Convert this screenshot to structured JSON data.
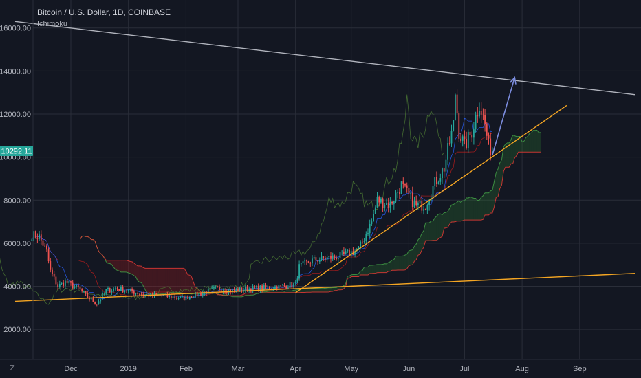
{
  "header": {
    "title": "Bitcoin / U.S. Dollar, 1D, COINBASE",
    "indicator": "Ichimoku"
  },
  "toolbar": {
    "zoom_icon": "Z"
  },
  "colors": {
    "background": "#131722",
    "grid": "#2a2e39",
    "up": "#26a69a",
    "down": "#ef5350",
    "price_line": "#26a69a",
    "trendline_orange": "#f5a623",
    "trendline_grey": "#b2b5be",
    "arrow": "#7b8cde",
    "cloud_bull": "#2e7d32",
    "cloud_bear": "#b71c1c"
  },
  "chart_data": {
    "type": "candlestick",
    "title": "Bitcoin / U.S. Dollar, 1D, COINBASE",
    "indicator": "Ichimoku",
    "x_ticks": [
      "Dec",
      "2019",
      "Feb",
      "Mar",
      "Apr",
      "May",
      "Jun",
      "Jul",
      "Aug",
      "Sep"
    ],
    "y_ticks": [
      "2000.00",
      "4000.00",
      "6000.00",
      "8000.00",
      "10000.00",
      "12000.00",
      "14000.00",
      "16000.00"
    ],
    "ylim": [
      600,
      17300
    ],
    "last_price": "10292.11",
    "close_path": [
      [
        "2018-11-10",
        6400
      ],
      [
        "2018-11-14",
        6300
      ],
      [
        "2018-11-18",
        5600
      ],
      [
        "2018-11-20",
        4700
      ],
      [
        "2018-11-24",
        4000
      ],
      [
        "2018-11-28",
        4200
      ],
      [
        "2018-12-05",
        3900
      ],
      [
        "2018-12-10",
        3500
      ],
      [
        "2018-12-15",
        3200
      ],
      [
        "2018-12-20",
        3800
      ],
      [
        "2018-12-25",
        3900
      ],
      [
        "2019-01-01",
        3800
      ],
      [
        "2019-01-10",
        3600
      ],
      [
        "2019-01-20",
        3550
      ],
      [
        "2019-01-30",
        3450
      ],
      [
        "2019-02-08",
        3650
      ],
      [
        "2019-02-18",
        3900
      ],
      [
        "2019-02-25",
        3800
      ],
      [
        "2019-03-10",
        3900
      ],
      [
        "2019-03-25",
        4000
      ],
      [
        "2019-04-01",
        4100
      ],
      [
        "2019-04-03",
        4900
      ],
      [
        "2019-04-10",
        5200
      ],
      [
        "2019-04-25",
        5400
      ],
      [
        "2019-05-05",
        5700
      ],
      [
        "2019-05-12",
        7000
      ],
      [
        "2019-05-15",
        8000
      ],
      [
        "2019-05-22",
        7800
      ],
      [
        "2019-05-28",
        8700
      ],
      [
        "2019-06-05",
        7700
      ],
      [
        "2019-06-10",
        7800
      ],
      [
        "2019-06-15",
        8800
      ],
      [
        "2019-06-20",
        9500
      ],
      [
        "2019-06-25",
        11500
      ],
      [
        "2019-06-26",
        13000
      ],
      [
        "2019-06-28",
        11200
      ],
      [
        "2019-07-01",
        10500
      ],
      [
        "2019-07-05",
        11200
      ],
      [
        "2019-07-09",
        12500
      ],
      [
        "2019-07-12",
        11500
      ],
      [
        "2019-07-14",
        10500
      ],
      [
        "2019-07-16",
        10300
      ]
    ],
    "annotations": [
      {
        "type": "trendline",
        "color": "orange",
        "from": [
          "2018-11-01",
          3300
        ],
        "to": [
          "2019-10-01",
          4600
        ]
      },
      {
        "type": "trendline",
        "color": "orange",
        "from": [
          "2019-04-01",
          3700
        ],
        "to": [
          "2019-08-25",
          12400
        ]
      },
      {
        "type": "trendline",
        "color": "grey",
        "from": [
          "2018-11-01",
          16300
        ],
        "to": [
          "2019-10-01",
          12900
        ]
      },
      {
        "type": "arrow",
        "color": "blue",
        "from": [
          "2019-07-16",
          10100
        ],
        "to": [
          "2019-07-28",
          13700
        ]
      }
    ]
  }
}
